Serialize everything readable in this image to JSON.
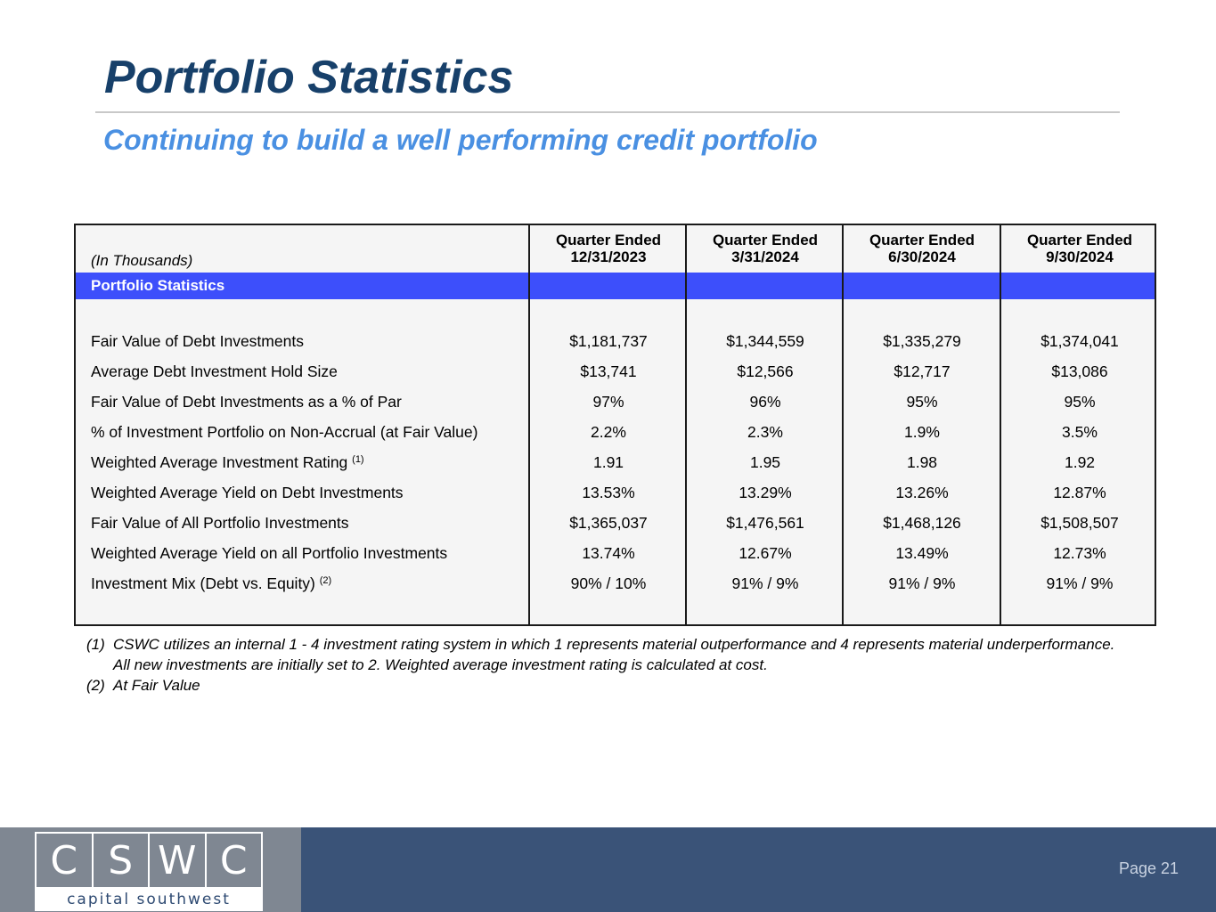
{
  "header": {
    "title": "Portfolio Statistics",
    "subtitle": "Continuing to build a well performing credit portfolio"
  },
  "table": {
    "units_label": "(In Thousands)",
    "columns": [
      {
        "line1": "Quarter Ended",
        "line2": "12/31/2023"
      },
      {
        "line1": "Quarter Ended",
        "line2": "3/31/2024"
      },
      {
        "line1": "Quarter Ended",
        "line2": "6/30/2024"
      },
      {
        "line1": "Quarter Ended",
        "line2": "9/30/2024"
      }
    ],
    "section_label": "Portfolio Statistics",
    "rows": [
      {
        "label": "Fair Value of Debt Investments",
        "sup": "",
        "values": [
          "$1,181,737",
          "$1,344,559",
          "$1,335,279",
          "$1,374,041"
        ]
      },
      {
        "label": "Average Debt Investment Hold Size",
        "sup": "",
        "values": [
          "$13,741",
          "$12,566",
          "$12,717",
          "$13,086"
        ]
      },
      {
        "label": "Fair Value of Debt Investments as a % of Par",
        "sup": "",
        "values": [
          "97%",
          "96%",
          "95%",
          "95%"
        ]
      },
      {
        "label": "% of Investment Portfolio on Non-Accrual (at Fair Value)",
        "sup": "",
        "values": [
          "2.2%",
          "2.3%",
          "1.9%",
          "3.5%"
        ]
      },
      {
        "label": "Weighted Average Investment Rating",
        "sup": "(1)",
        "values": [
          "1.91",
          "1.95",
          "1.98",
          "1.92"
        ]
      },
      {
        "label": "Weighted Average Yield on Debt Investments",
        "sup": "",
        "values": [
          "13.53%",
          "13.29%",
          "13.26%",
          "12.87%"
        ]
      },
      {
        "label": "Fair Value of All Portfolio Investments",
        "sup": "",
        "values": [
          "$1,365,037",
          "$1,476,561",
          "$1,468,126",
          "$1,508,507"
        ]
      },
      {
        "label": "Weighted Average Yield on all Portfolio Investments",
        "sup": "",
        "values": [
          "13.74%",
          "12.67%",
          "13.49%",
          "12.73%"
        ]
      },
      {
        "label": "Investment Mix (Debt vs. Equity)",
        "sup": "(2)",
        "values": [
          "90% / 10%",
          "91% / 9%",
          "91% / 9%",
          "91% / 9%"
        ]
      }
    ]
  },
  "footnotes": [
    {
      "num": "(1)",
      "text": "CSWC utilizes an internal 1 - 4 investment rating system in which 1 represents material outperformance and 4 represents material underperformance.  All new investments are initially set to 2.  Weighted average investment rating is calculated at cost."
    },
    {
      "num": "(2)",
      "text": "At Fair Value"
    }
  ],
  "footer": {
    "logo_letters": [
      "C",
      "S",
      "W",
      "C"
    ],
    "logo_text": "capital southwest",
    "page_label": "Page 21"
  },
  "colors": {
    "title": "#17406a",
    "subtitle": "#4a90e2",
    "band": "#3d4ffb",
    "footer": "#3a5378"
  }
}
